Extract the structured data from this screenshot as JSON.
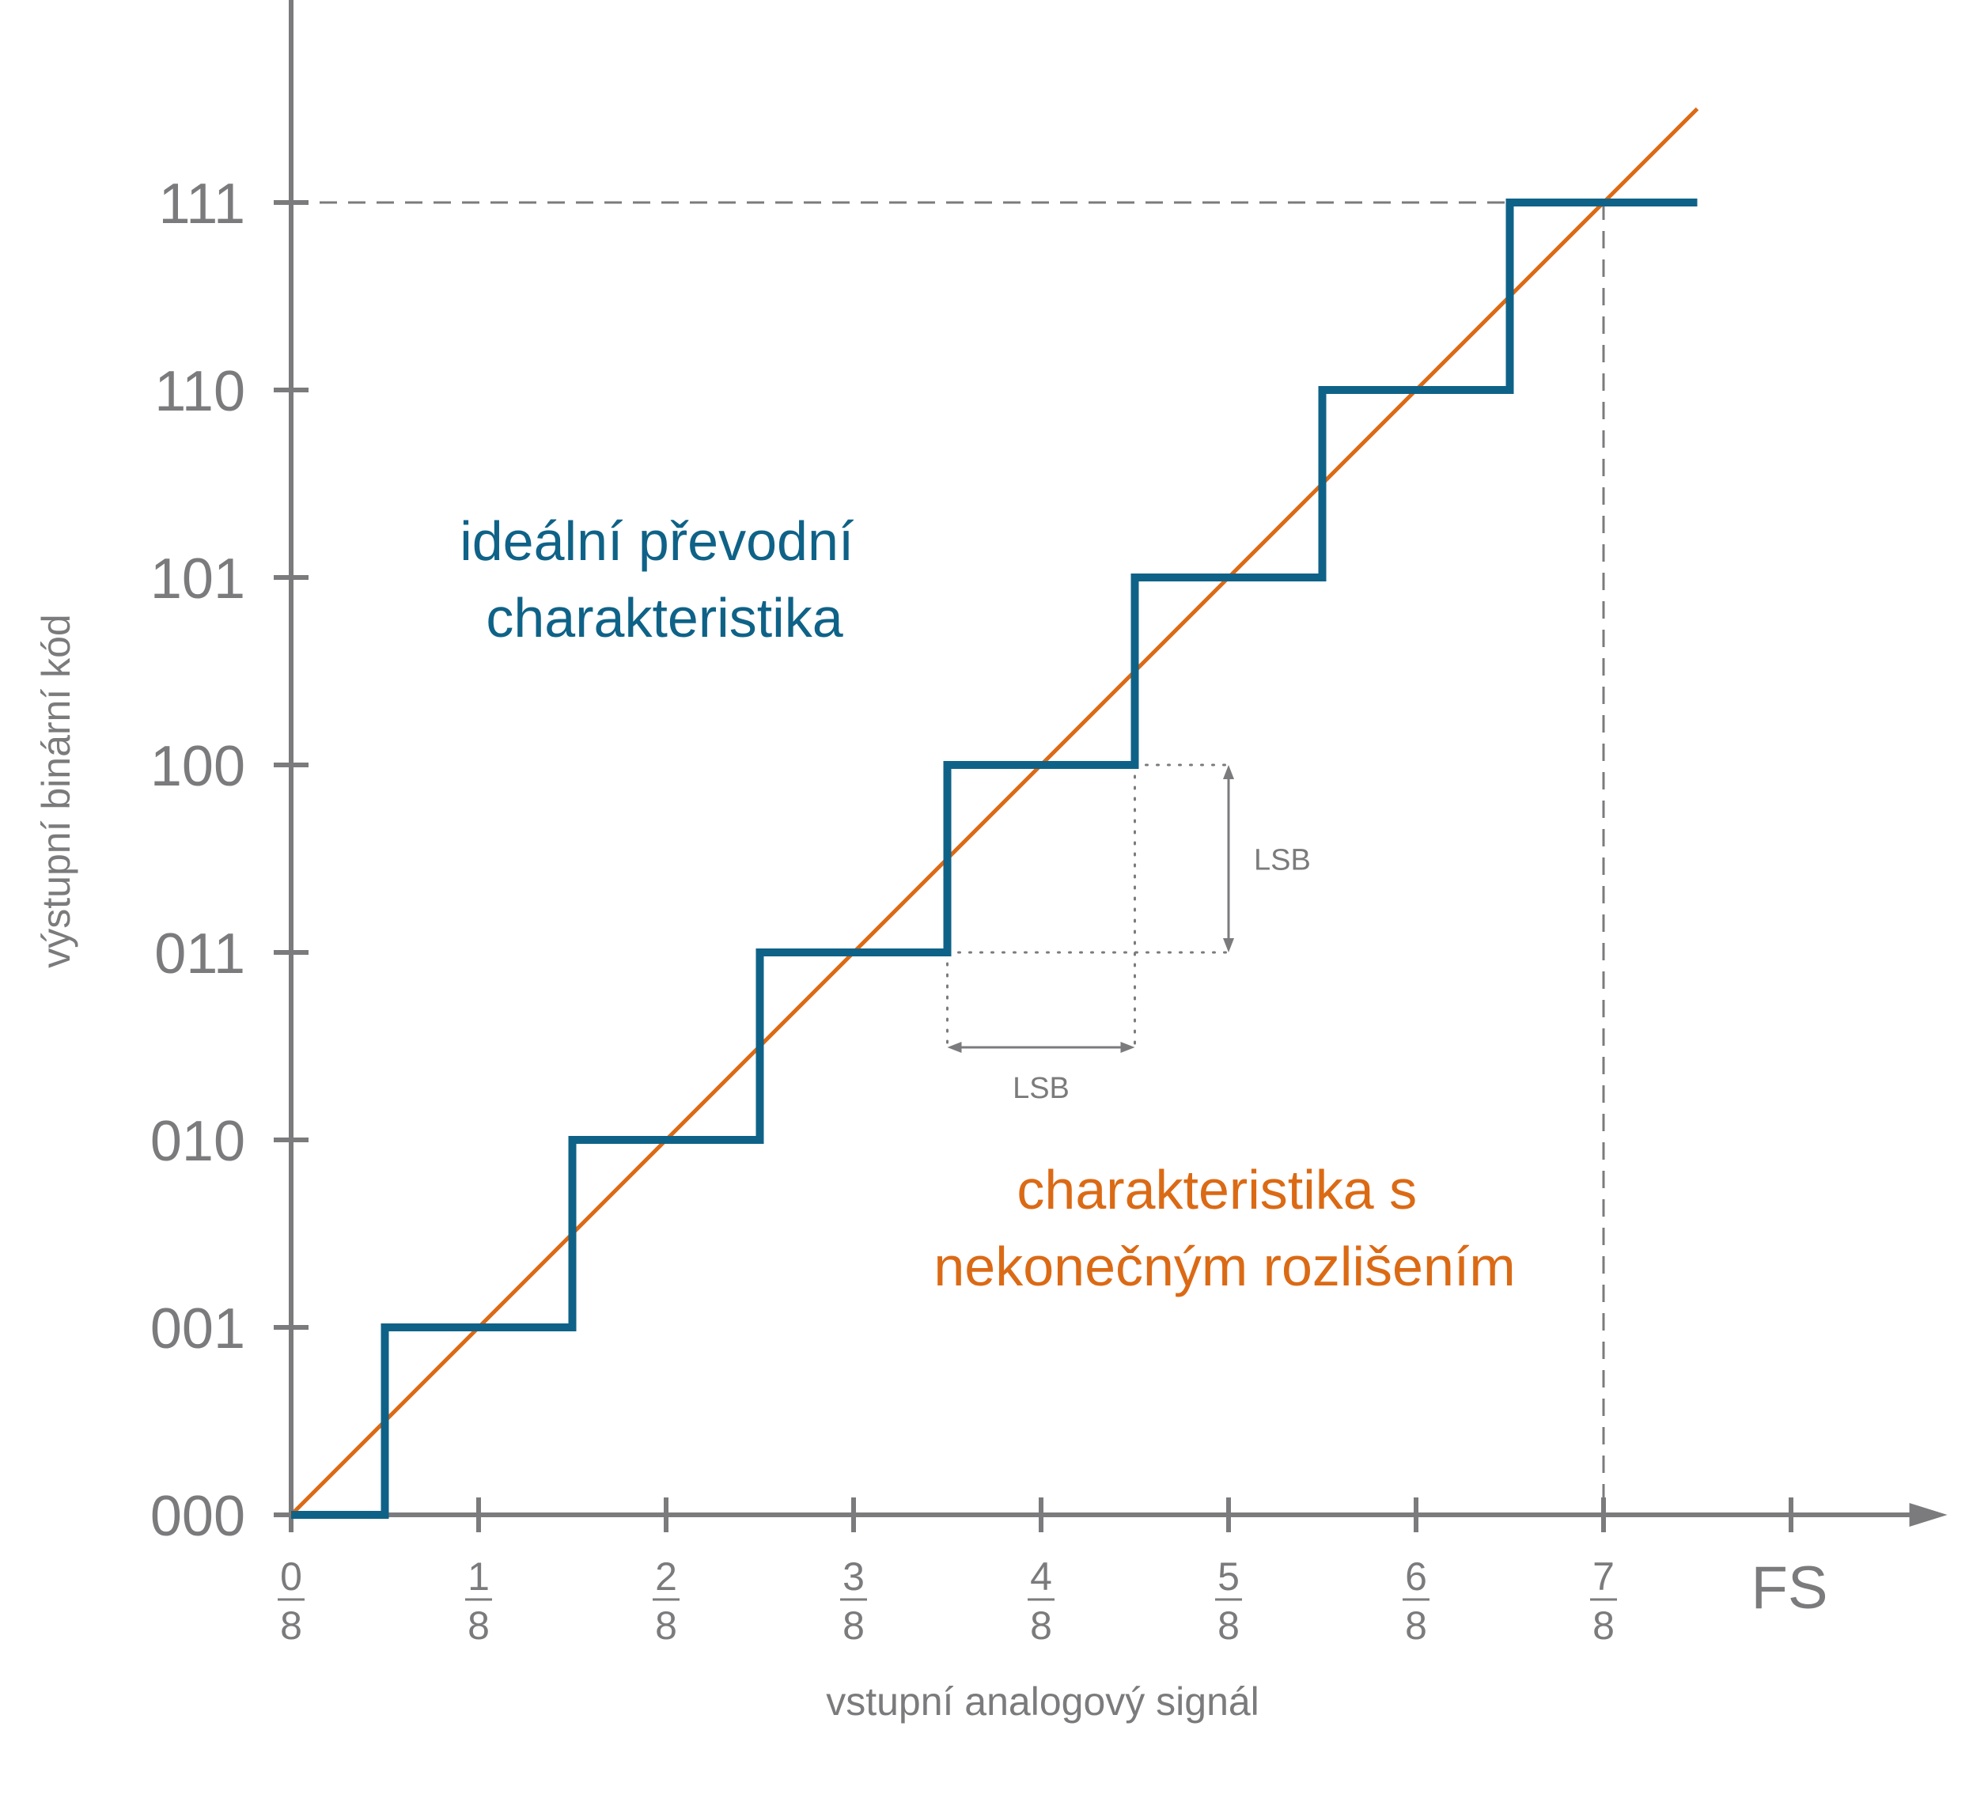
{
  "chart_data": {
    "type": "line",
    "x_axis": {
      "title": "vstupní analogový signál",
      "tick_fractions": [
        {
          "num": "0",
          "den": "8",
          "value": 0
        },
        {
          "num": "1",
          "den": "8",
          "value": 1
        },
        {
          "num": "2",
          "den": "8",
          "value": 2
        },
        {
          "num": "3",
          "den": "8",
          "value": 3
        },
        {
          "num": "4",
          "den": "8",
          "value": 4
        },
        {
          "num": "5",
          "den": "8",
          "value": 5
        },
        {
          "num": "6",
          "den": "8",
          "value": 6
        },
        {
          "num": "7",
          "den": "8",
          "value": 7
        }
      ],
      "end_label": "FS",
      "end_value": 8,
      "xlim": [
        0,
        8.8
      ]
    },
    "y_axis": {
      "title": "výstupní binární kód",
      "tick_labels": [
        "000",
        "001",
        "010",
        "011",
        "100",
        "101",
        "110",
        "111"
      ],
      "ylim": [
        0,
        8.2
      ]
    },
    "series": [
      {
        "name": "ideální převodní charakteristika",
        "kind": "step",
        "color": "#0f6287",
        "x": [
          0,
          0.5,
          0.5,
          1.5,
          1.5,
          2.5,
          2.5,
          3.5,
          3.5,
          4.5,
          4.5,
          5.5,
          5.5,
          6.5,
          6.5,
          7.5
        ],
        "y": [
          0,
          0,
          1,
          1,
          2,
          2,
          3,
          3,
          4,
          4,
          5,
          5,
          6,
          6,
          7,
          7
        ]
      },
      {
        "name": "charakteristika s nekonečným rozlišením",
        "kind": "line",
        "color": "#db6a15",
        "x": [
          0,
          7.5
        ],
        "y": [
          0,
          7.5
        ]
      }
    ],
    "reference_lines": {
      "horizontal_y": 7,
      "vertical_x": 7,
      "style": "dashed"
    },
    "lsb_annotation": {
      "label_vertical": "LSB",
      "label_horizontal": "LSB",
      "y_from": 3,
      "y_to": 4,
      "x_from": 3.5,
      "x_to": 4.5
    },
    "grid": false,
    "axis_color": "#7b7b7d"
  }
}
